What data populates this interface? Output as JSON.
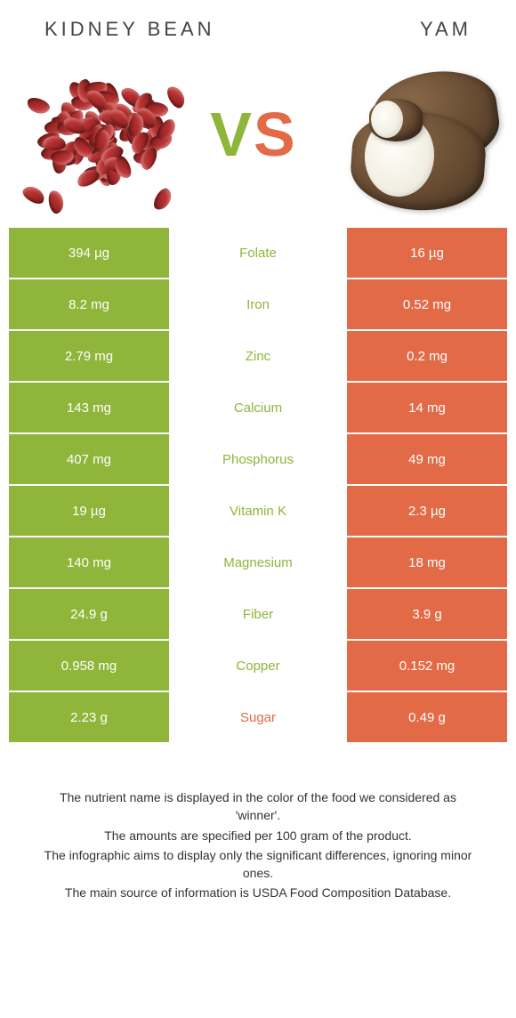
{
  "titles": {
    "left": "KIDNEY BEAN",
    "right": "YAM"
  },
  "vs": {
    "v": "V",
    "s": "S"
  },
  "colors": {
    "green": "#8fb53a",
    "orange": "#e26a47",
    "mid_text_green": "#8fb53a",
    "mid_text_orange": "#e26a47"
  },
  "rows": [
    {
      "left": "394 µg",
      "label": "Folate",
      "right": "16 µg",
      "winner": "left"
    },
    {
      "left": "8.2 mg",
      "label": "Iron",
      "right": "0.52 mg",
      "winner": "left"
    },
    {
      "left": "2.79 mg",
      "label": "Zinc",
      "right": "0.2 mg",
      "winner": "left"
    },
    {
      "left": "143 mg",
      "label": "Calcium",
      "right": "14 mg",
      "winner": "left"
    },
    {
      "left": "407 mg",
      "label": "Phosphorus",
      "right": "49 mg",
      "winner": "left"
    },
    {
      "left": "19 µg",
      "label": "Vitamin K",
      "right": "2.3 µg",
      "winner": "left"
    },
    {
      "left": "140 mg",
      "label": "Magnesium",
      "right": "18 mg",
      "winner": "left"
    },
    {
      "left": "24.9 g",
      "label": "Fiber",
      "right": "3.9 g",
      "winner": "left"
    },
    {
      "left": "0.958 mg",
      "label": "Copper",
      "right": "0.152 mg",
      "winner": "left"
    },
    {
      "left": "2.23 g",
      "label": "Sugar",
      "right": "0.49 g",
      "winner": "right"
    }
  ],
  "footnotes": [
    "The nutrient name is displayed in the color of the food we considered as 'winner'.",
    "The amounts are specified per 100 gram of the product.",
    "The infographic aims to display only the significant differences, ignoring minor ones.",
    "The main source of information is USDA Food Composition Database."
  ]
}
